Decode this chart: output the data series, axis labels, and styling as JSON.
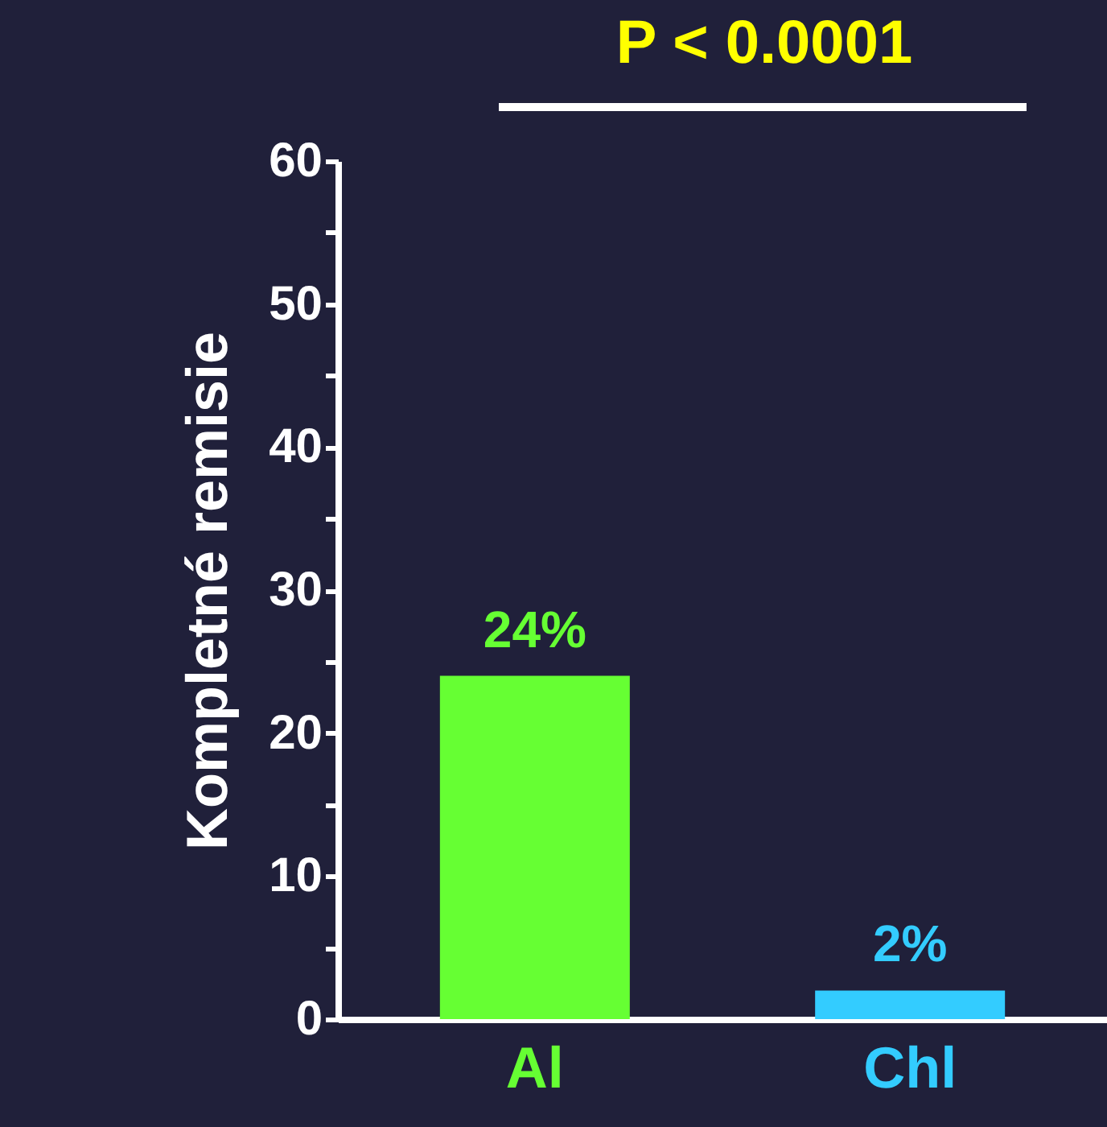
{
  "chart_data": {
    "type": "bar",
    "ylabel": "Kompletné remisie",
    "annotations": [
      "P < 0.0001"
    ],
    "categories": [
      "Al",
      "Chl"
    ],
    "values": [
      24,
      2
    ],
    "colors": [
      "#66ff33",
      "#33ccff"
    ],
    "value_labels": [
      "24%",
      "2%"
    ],
    "ylim": [
      0,
      60
    ],
    "yticks": [
      0,
      {
        "value": 5,
        "label": null
      },
      10,
      {
        "value": 15,
        "label": null
      },
      20,
      {
        "value": 25,
        "label": null
      },
      30,
      {
        "value": 35,
        "label": null
      },
      40,
      {
        "value": 45,
        "label": null
      },
      50,
      {
        "value": 55,
        "label": null
      },
      60
    ]
  }
}
